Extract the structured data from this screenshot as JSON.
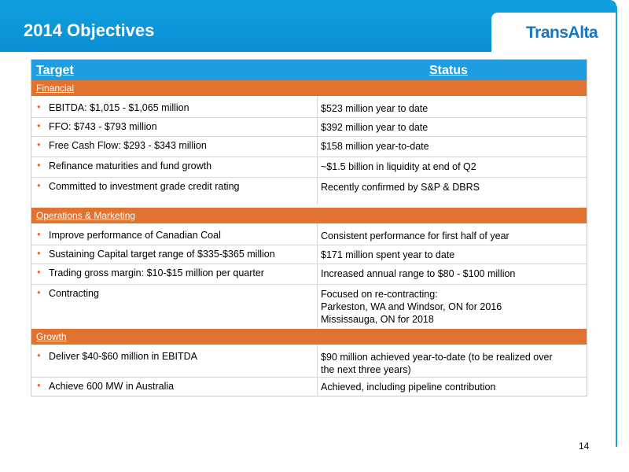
{
  "header": {
    "title": "2014 Objectives",
    "logo_text": "TransAlta"
  },
  "table": {
    "col_target": "Target",
    "col_status": "Status",
    "sections": [
      {
        "name": "Financial",
        "rows": [
          {
            "target": "EBITDA: $1,015 - $1,065 million",
            "status": "$523 million year to date"
          },
          {
            "target": "FFO: $743 - $793 million",
            "status": "$392 million year to date"
          },
          {
            "target": "Free Cash Flow: $293 - $343 million",
            "status": "$158 million year-to-date"
          },
          {
            "target": "Refinance maturities and fund growth",
            "status": "~$1.5 billion in liquidity at end of Q2"
          },
          {
            "target": "Committed to investment grade credit rating",
            "status": "Recently confirmed by S&P & DBRS"
          }
        ]
      },
      {
        "name": "Operations & Marketing",
        "rows": [
          {
            "target": "Improve performance of Canadian Coal",
            "status": "Consistent performance for first half of year"
          },
          {
            "target": "Sustaining Capital target range of $335-$365 million",
            "status": "$171 million spent year to date"
          },
          {
            "target": "Trading gross margin: $10-$15 million per quarter",
            "status": "Increased annual range to $80 - $100 million"
          },
          {
            "target": "Contracting",
            "status_lines": [
              "Focused on re-contracting:",
              "Parkeston, WA and Windsor, ON for 2016",
              "Mississauga, ON for 2018"
            ]
          }
        ]
      },
      {
        "name": "Growth",
        "rows": [
          {
            "target": "Deliver $40-$60 million in EBITDA",
            "status_lines": [
              "$90 million achieved year-to-date (to be realized over",
              "the next three years)"
            ]
          },
          {
            "target": "Achieve 600 MW in Australia",
            "status": "Achieved, including pipeline contribution"
          }
        ]
      }
    ]
  },
  "footer": {
    "page_number": "14"
  },
  "colors": {
    "header_blue": "#0f9fe0",
    "section_orange": "#e2722f",
    "logo_blue": "#1477c4"
  }
}
